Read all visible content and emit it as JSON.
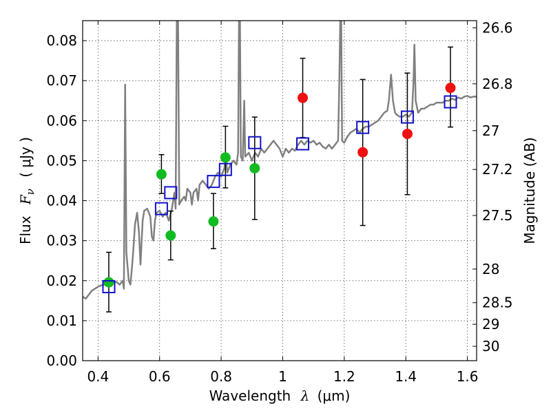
{
  "chart_data": {
    "type": "scatter",
    "xlabel_main": "Wavelength",
    "xlabel_symbol": "λ",
    "xlabel_unit": "(μm)",
    "ylabel_main": "Flux",
    "ylabel_symbol": "F",
    "ylabel_subscript": "ν",
    "ylabel_unit": "( μJy )",
    "y2label": "Magnitude (AB)",
    "xlim": [
      0.35,
      1.63
    ],
    "ylim": [
      0.0,
      0.085
    ],
    "grid": true,
    "x_ticks": [
      0.4,
      0.6,
      0.8,
      1.0,
      1.2,
      1.4,
      1.6
    ],
    "x_tick_labels": [
      "0.4",
      "0.6",
      "0.8",
      "1",
      "1.2",
      "1.4",
      "1.6"
    ],
    "y_ticks": [
      0.0,
      0.01,
      0.02,
      0.03,
      0.04,
      0.05,
      0.06,
      0.07,
      0.08
    ],
    "y_tick_labels": [
      "0.00",
      "0.01",
      "0.02",
      "0.03",
      "0.04",
      "0.05",
      "0.06",
      "0.07",
      "0.08"
    ],
    "y2_ticks": [
      {
        "label": "26.6",
        "flux": 0.0832
      },
      {
        "label": "26.8",
        "flux": 0.0692
      },
      {
        "label": "27",
        "flux": 0.0575
      },
      {
        "label": "27.2",
        "flux": 0.0478
      },
      {
        "label": "27.5",
        "flux": 0.0363
      },
      {
        "label": "28",
        "flux": 0.0229
      },
      {
        "label": "28.5",
        "flux": 0.0145
      },
      {
        "label": "29",
        "flux": 0.0091
      },
      {
        "label": "30",
        "flux": 0.0036
      }
    ],
    "spectrum": {
      "color": "#808080",
      "points": [
        [
          0.35,
          0.016
        ],
        [
          0.36,
          0.0155
        ],
        [
          0.37,
          0.0165
        ],
        [
          0.38,
          0.0175
        ],
        [
          0.39,
          0.018
        ],
        [
          0.4,
          0.0185
        ],
        [
          0.41,
          0.0188
        ],
        [
          0.42,
          0.019
        ],
        [
          0.43,
          0.0192
        ],
        [
          0.44,
          0.0195
        ],
        [
          0.45,
          0.0195
        ],
        [
          0.46,
          0.0197
        ],
        [
          0.47,
          0.019
        ],
        [
          0.48,
          0.02
        ],
        [
          0.484,
          0.018
        ],
        [
          0.488,
          0.069
        ],
        [
          0.492,
          0.027
        ],
        [
          0.5,
          0.02
        ],
        [
          0.505,
          0.019
        ],
        [
          0.51,
          0.023
        ],
        [
          0.515,
          0.028
        ],
        [
          0.52,
          0.034
        ],
        [
          0.527,
          0.037
        ],
        [
          0.533,
          0.032
        ],
        [
          0.538,
          0.024
        ],
        [
          0.545,
          0.035
        ],
        [
          0.55,
          0.0375
        ],
        [
          0.56,
          0.038
        ],
        [
          0.57,
          0.036
        ],
        [
          0.575,
          0.031
        ],
        [
          0.58,
          0.03
        ],
        [
          0.585,
          0.035
        ],
        [
          0.59,
          0.037
        ],
        [
          0.6,
          0.0375
        ],
        [
          0.61,
          0.036
        ],
        [
          0.62,
          0.037
        ],
        [
          0.63,
          0.035
        ],
        [
          0.64,
          0.038
        ],
        [
          0.648,
          0.042
        ],
        [
          0.652,
          0.038
        ],
        [
          0.656,
          0.085
        ],
        [
          0.66,
          0.085
        ],
        [
          0.664,
          0.039
        ],
        [
          0.67,
          0.04
        ],
        [
          0.68,
          0.041
        ],
        [
          0.685,
          0.04
        ],
        [
          0.69,
          0.043
        ],
        [
          0.7,
          0.042
        ],
        [
          0.705,
          0.039
        ],
        [
          0.71,
          0.042
        ],
        [
          0.72,
          0.043
        ],
        [
          0.725,
          0.04
        ],
        [
          0.73,
          0.044
        ],
        [
          0.74,
          0.045
        ],
        [
          0.75,
          0.044
        ],
        [
          0.76,
          0.043
        ],
        [
          0.77,
          0.044
        ],
        [
          0.78,
          0.046
        ],
        [
          0.79,
          0.047
        ],
        [
          0.8,
          0.046
        ],
        [
          0.81,
          0.048
        ],
        [
          0.815,
          0.051
        ],
        [
          0.82,
          0.047
        ],
        [
          0.83,
          0.049
        ],
        [
          0.84,
          0.05
        ],
        [
          0.85,
          0.049
        ],
        [
          0.855,
          0.052
        ],
        [
          0.858,
          0.085
        ],
        [
          0.861,
          0.085
        ],
        [
          0.864,
          0.051
        ],
        [
          0.87,
          0.05
        ],
        [
          0.875,
          0.065
        ],
        [
          0.878,
          0.051
        ],
        [
          0.89,
          0.052
        ],
        [
          0.9,
          0.05
        ],
        [
          0.91,
          0.052
        ],
        [
          0.92,
          0.051
        ],
        [
          0.93,
          0.053
        ],
        [
          0.94,
          0.052
        ],
        [
          0.95,
          0.053
        ],
        [
          0.96,
          0.054
        ],
        [
          0.97,
          0.055
        ],
        [
          0.98,
          0.054
        ],
        [
          0.99,
          0.053
        ],
        [
          1.0,
          0.051
        ],
        [
          1.01,
          0.053
        ],
        [
          1.02,
          0.052
        ],
        [
          1.03,
          0.053
        ],
        [
          1.04,
          0.0525
        ],
        [
          1.05,
          0.054
        ],
        [
          1.06,
          0.055
        ],
        [
          1.07,
          0.054
        ],
        [
          1.08,
          0.055
        ],
        [
          1.09,
          0.0545
        ],
        [
          1.1,
          0.055
        ],
        [
          1.11,
          0.054
        ],
        [
          1.12,
          0.0545
        ],
        [
          1.13,
          0.0535
        ],
        [
          1.14,
          0.053
        ],
        [
          1.15,
          0.054
        ],
        [
          1.16,
          0.053
        ],
        [
          1.17,
          0.054
        ],
        [
          1.18,
          0.055
        ],
        [
          1.184,
          0.07
        ],
        [
          1.187,
          0.085
        ],
        [
          1.19,
          0.085
        ],
        [
          1.193,
          0.055
        ],
        [
          1.2,
          0.0545
        ],
        [
          1.21,
          0.056
        ],
        [
          1.22,
          0.057
        ],
        [
          1.23,
          0.0575
        ],
        [
          1.24,
          0.058
        ],
        [
          1.25,
          0.057
        ],
        [
          1.26,
          0.058
        ],
        [
          1.27,
          0.0585
        ],
        [
          1.28,
          0.0585
        ],
        [
          1.29,
          0.059
        ],
        [
          1.3,
          0.0595
        ],
        [
          1.31,
          0.06
        ],
        [
          1.32,
          0.061
        ],
        [
          1.33,
          0.062
        ],
        [
          1.34,
          0.0625
        ],
        [
          1.345,
          0.065
        ],
        [
          1.352,
          0.0715
        ],
        [
          1.358,
          0.065
        ],
        [
          1.365,
          0.062
        ],
        [
          1.37,
          0.0615
        ],
        [
          1.38,
          0.061
        ],
        [
          1.39,
          0.061
        ],
        [
          1.4,
          0.0615
        ],
        [
          1.41,
          0.061
        ],
        [
          1.42,
          0.062
        ],
        [
          1.425,
          0.07
        ],
        [
          1.428,
          0.079
        ],
        [
          1.432,
          0.065
        ],
        [
          1.44,
          0.062
        ],
        [
          1.45,
          0.063
        ],
        [
          1.46,
          0.063
        ],
        [
          1.47,
          0.0635
        ],
        [
          1.48,
          0.064
        ],
        [
          1.49,
          0.064
        ],
        [
          1.5,
          0.0645
        ],
        [
          1.51,
          0.0645
        ],
        [
          1.52,
          0.0645
        ],
        [
          1.53,
          0.065
        ],
        [
          1.54,
          0.065
        ],
        [
          1.55,
          0.0655
        ],
        [
          1.56,
          0.0652
        ],
        [
          1.57,
          0.0658
        ],
        [
          1.58,
          0.0655
        ],
        [
          1.59,
          0.066
        ],
        [
          1.6,
          0.0662
        ],
        [
          1.61,
          0.0658
        ],
        [
          1.62,
          0.066
        ],
        [
          1.63,
          0.066
        ]
      ]
    },
    "series": [
      {
        "marker": "circle",
        "color": "#11bb22",
        "points": [
          {
            "x": 0.435,
            "y": 0.0196
          },
          {
            "x": 0.606,
            "y": 0.0466
          },
          {
            "x": 0.636,
            "y": 0.0313
          },
          {
            "x": 0.775,
            "y": 0.0348
          },
          {
            "x": 0.814,
            "y": 0.0508
          },
          {
            "x": 0.909,
            "y": 0.0481
          }
        ]
      },
      {
        "marker": "circle",
        "color": "#ee1111",
        "points": [
          {
            "x": 1.065,
            "y": 0.0657
          },
          {
            "x": 1.26,
            "y": 0.0521
          },
          {
            "x": 1.405,
            "y": 0.0567
          },
          {
            "x": 1.545,
            "y": 0.0682
          }
        ]
      },
      {
        "marker": "square",
        "color": "#1111cc",
        "points": [
          {
            "x": 0.435,
            "y": 0.0185
          },
          {
            "x": 0.606,
            "y": 0.038
          },
          {
            "x": 0.636,
            "y": 0.042
          },
          {
            "x": 0.775,
            "y": 0.0448
          },
          {
            "x": 0.814,
            "y": 0.0478
          },
          {
            "x": 0.909,
            "y": 0.0545
          },
          {
            "x": 1.065,
            "y": 0.0542
          },
          {
            "x": 1.26,
            "y": 0.0583
          },
          {
            "x": 1.405,
            "y": 0.0609
          },
          {
            "x": 1.545,
            "y": 0.0647
          }
        ]
      }
    ],
    "error_bars": [
      {
        "x": 0.435,
        "y_low": 0.0122,
        "y_high": 0.0271
      },
      {
        "x": 0.606,
        "y_low": 0.0418,
        "y_high": 0.0515
      },
      {
        "x": 0.636,
        "y_low": 0.0252,
        "y_high": 0.0374
      },
      {
        "x": 0.775,
        "y_low": 0.028,
        "y_high": 0.0418
      },
      {
        "x": 0.814,
        "y_low": 0.0432,
        "y_high": 0.0586
      },
      {
        "x": 0.909,
        "y_low": 0.0353,
        "y_high": 0.0609
      },
      {
        "x": 1.065,
        "y_low": 0.0558,
        "y_high": 0.0756
      },
      {
        "x": 1.26,
        "y_low": 0.0338,
        "y_high": 0.0703
      },
      {
        "x": 1.405,
        "y_low": 0.0415,
        "y_high": 0.0719
      },
      {
        "x": 1.545,
        "y_low": 0.0584,
        "y_high": 0.0784
      }
    ]
  }
}
